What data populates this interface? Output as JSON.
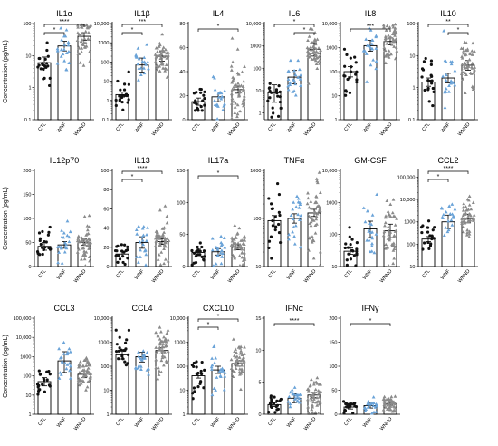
{
  "figure": {
    "ylabel": "Concentration (pg/mL)",
    "categories": [
      "CTL",
      "WNF",
      "WNND"
    ],
    "colors": {
      "CTL": "#111111",
      "WNF": "#6aa3d8",
      "WNND": "#8a8a8a",
      "axis": "#000000"
    }
  },
  "chart_data": [
    {
      "type": "scatter",
      "title": "IL1α",
      "scale": "log",
      "yticks": [
        "0.1",
        "1",
        "10",
        "100"
      ],
      "ytick_values": [
        0.1,
        1,
        10,
        100
      ],
      "ylim": [
        0.1,
        100
      ],
      "categories": [
        "CTL",
        "WNF",
        "WNND"
      ],
      "means": [
        6,
        20,
        40
      ],
      "sem_low": [
        4,
        14,
        30
      ],
      "sem_high": [
        9,
        28,
        52
      ],
      "n": [
        20,
        22,
        48
      ],
      "brackets": [
        {
          "from": "CTL",
          "to": "WNF",
          "label": "*"
        },
        {
          "from": "CTL",
          "to": "WNND",
          "label": "****"
        }
      ]
    },
    {
      "type": "scatter",
      "title": "IL1β",
      "scale": "log",
      "yticks": [
        "0.1",
        "1",
        "10",
        "100",
        "1000",
        "10,000"
      ],
      "ytick_values": [
        0.1,
        1,
        10,
        100,
        1000,
        10000
      ],
      "ylim": [
        0.1,
        10000
      ],
      "categories": [
        "CTL",
        "WNF",
        "WNND"
      ],
      "means": [
        2,
        70,
        200
      ],
      "sem_low": [
        1.5,
        30,
        110
      ],
      "sem_high": [
        2.7,
        160,
        380
      ],
      "n": [
        20,
        22,
        48
      ],
      "brackets": [
        {
          "from": "CTL",
          "to": "WNF",
          "label": "*"
        },
        {
          "from": "CTL",
          "to": "WNND",
          "label": "***"
        }
      ]
    },
    {
      "type": "scatter",
      "title": "IL4",
      "scale": "linear",
      "yticks": [
        "0",
        "20",
        "40",
        "60",
        "80"
      ],
      "ytick_values": [
        0,
        20,
        40,
        60,
        80
      ],
      "ylim": [
        0,
        80
      ],
      "categories": [
        "CTL",
        "WNF",
        "WNND"
      ],
      "means": [
        15,
        19,
        25
      ],
      "sem_low": [
        12,
        15,
        22
      ],
      "sem_high": [
        18,
        23,
        28
      ],
      "n": [
        20,
        22,
        48
      ],
      "brackets": [
        {
          "from": "CTL",
          "to": "WNND",
          "label": "*"
        }
      ]
    },
    {
      "type": "scatter",
      "title": "IL6",
      "scale": "log",
      "yticks": [
        "1",
        "10",
        "100",
        "1000",
        "10,000"
      ],
      "ytick_values": [
        1,
        10,
        100,
        1000,
        10000
      ],
      "ylim": [
        0.5,
        10000
      ],
      "categories": [
        "CTL",
        "WNF",
        "WNND"
      ],
      "means": [
        8,
        40,
        700
      ],
      "sem_low": [
        3,
        20,
        350
      ],
      "sem_high": [
        18,
        80,
        1400
      ],
      "n": [
        20,
        22,
        48
      ],
      "brackets": [
        {
          "from": "WNF",
          "to": "WNND",
          "label": "*"
        },
        {
          "from": "CTL",
          "to": "WNND",
          "label": "*"
        }
      ]
    },
    {
      "type": "scatter",
      "title": "IL8",
      "scale": "log",
      "yticks": [
        "1",
        "10",
        "100",
        "1000",
        "10,000"
      ],
      "ytick_values": [
        1,
        10,
        100,
        1000,
        10000
      ],
      "ylim": [
        1,
        10000
      ],
      "categories": [
        "CTL",
        "WNF",
        "WNND"
      ],
      "means": [
        100,
        1200,
        1800
      ],
      "sem_low": [
        60,
        700,
        1300
      ],
      "sem_high": [
        160,
        2000,
        2500
      ],
      "n": [
        20,
        22,
        48
      ],
      "brackets": [
        {
          "from": "CTL",
          "to": "WNND",
          "label": "***"
        }
      ]
    },
    {
      "type": "scatter",
      "title": "IL10",
      "scale": "log",
      "yticks": [
        "0.1",
        "1",
        "10",
        "100"
      ],
      "ytick_values": [
        0.1,
        1,
        10,
        100
      ],
      "ylim": [
        0.1,
        100
      ],
      "categories": [
        "CTL",
        "WNF",
        "WNND"
      ],
      "means": [
        1.5,
        2,
        5
      ],
      "sem_low": [
        1.1,
        1.4,
        3.5
      ],
      "sem_high": [
        2,
        2.8,
        7
      ],
      "n": [
        20,
        22,
        48
      ],
      "brackets": [
        {
          "from": "WNF",
          "to": "WNND",
          "label": "*"
        },
        {
          "from": "CTL",
          "to": "WNND",
          "label": "**"
        }
      ]
    },
    {
      "type": "scatter",
      "title": "IL12p70",
      "scale": "linear",
      "yticks": [
        "0",
        "50",
        "100",
        "150",
        "200"
      ],
      "ytick_values": [
        0,
        50,
        100,
        150,
        200
      ],
      "ylim": [
        0,
        200
      ],
      "categories": [
        "CTL",
        "WNF",
        "WNND"
      ],
      "means": [
        42,
        45,
        50
      ],
      "sem_low": [
        34,
        38,
        44
      ],
      "sem_high": [
        50,
        52,
        57
      ],
      "n": [
        20,
        22,
        48
      ],
      "brackets": []
    },
    {
      "type": "scatter",
      "title": "IL13",
      "scale": "linear",
      "yticks": [
        "0",
        "20",
        "40",
        "60",
        "80",
        "100"
      ],
      "ytick_values": [
        0,
        20,
        40,
        60,
        80,
        100
      ],
      "ylim": [
        0,
        100
      ],
      "categories": [
        "CTL",
        "WNF",
        "WNND"
      ],
      "means": [
        13,
        25,
        26
      ],
      "sem_low": [
        10,
        19,
        23
      ],
      "sem_high": [
        16,
        31,
        29
      ],
      "n": [
        20,
        22,
        48
      ],
      "brackets": [
        {
          "from": "CTL",
          "to": "WNF",
          "label": "*"
        },
        {
          "from": "CTL",
          "to": "WNND",
          "label": "****"
        }
      ]
    },
    {
      "type": "scatter",
      "title": "IL17a",
      "scale": "linear",
      "yticks": [
        "0",
        "50",
        "100",
        "150"
      ],
      "ytick_values": [
        0,
        50,
        100,
        150
      ],
      "ylim": [
        0,
        150
      ],
      "categories": [
        "CTL",
        "WNF",
        "WNND"
      ],
      "means": [
        22,
        23,
        30
      ],
      "sem_low": [
        17,
        18,
        26
      ],
      "sem_high": [
        27,
        28,
        34
      ],
      "n": [
        20,
        22,
        48
      ],
      "brackets": [
        {
          "from": "CTL",
          "to": "WNND",
          "label": "*"
        }
      ]
    },
    {
      "type": "scatter",
      "title": "TNFα",
      "scale": "log",
      "yticks": [
        "10",
        "100",
        "1000"
      ],
      "ytick_values": [
        10,
        100,
        1000
      ],
      "ylim": [
        10,
        1000
      ],
      "categories": [
        "CTL",
        "WNF",
        "WNND"
      ],
      "means": [
        90,
        100,
        130
      ],
      "sem_low": [
        70,
        80,
        110
      ],
      "sem_high": [
        115,
        125,
        155
      ],
      "n": [
        20,
        22,
        48
      ],
      "brackets": []
    },
    {
      "type": "scatter",
      "title": "GM-CSF",
      "scale": "log",
      "yticks": [
        "10",
        "100",
        "1000",
        "10,000"
      ],
      "ytick_values": [
        10,
        100,
        1000,
        10000
      ],
      "ylim": [
        10,
        10000
      ],
      "categories": [
        "CTL",
        "WNF",
        "WNND"
      ],
      "means": [
        30,
        150,
        130
      ],
      "sem_low": [
        24,
        80,
        80
      ],
      "sem_high": [
        38,
        260,
        210
      ],
      "n": [
        20,
        22,
        48
      ],
      "brackets": []
    },
    {
      "type": "scatter",
      "title": "CCL2",
      "scale": "log",
      "yticks": [
        "10",
        "100",
        "1000",
        "10,000",
        "100,000"
      ],
      "ytick_values": [
        10,
        100,
        1000,
        10000,
        100000
      ],
      "ylim": [
        10,
        200000
      ],
      "categories": [
        "CTL",
        "WNF",
        "WNND"
      ],
      "means": [
        170,
        1000,
        1400
      ],
      "sem_low": [
        130,
        500,
        900
      ],
      "sem_high": [
        220,
        2000,
        2200
      ],
      "n": [
        20,
        22,
        48
      ],
      "brackets": [
        {
          "from": "CTL",
          "to": "WNF",
          "label": "*"
        },
        {
          "from": "CTL",
          "to": "WNND",
          "label": "****"
        }
      ]
    },
    {
      "type": "scatter",
      "title": "CCL3",
      "scale": "log",
      "yticks": [
        "1",
        "10",
        "100",
        "1000",
        "10,000",
        "100,000"
      ],
      "ytick_values": [
        1,
        10,
        100,
        1000,
        10000,
        100000
      ],
      "ylim": [
        1,
        100000
      ],
      "categories": [
        "CTL",
        "WNF",
        "WNND"
      ],
      "means": [
        50,
        600,
        120
      ],
      "sem_low": [
        30,
        150,
        80
      ],
      "sem_high": [
        80,
        1800,
        180
      ],
      "n": [
        20,
        22,
        48
      ],
      "brackets": []
    },
    {
      "type": "scatter",
      "title": "CCL4",
      "scale": "log",
      "yticks": [
        "1",
        "10",
        "100",
        "1000",
        "10,000"
      ],
      "ytick_values": [
        1,
        10,
        100,
        1000,
        10000
      ],
      "ylim": [
        1,
        10000
      ],
      "categories": [
        "CTL",
        "WNF",
        "WNND"
      ],
      "means": [
        300,
        250,
        450
      ],
      "sem_low": [
        200,
        150,
        330
      ],
      "sem_high": [
        430,
        380,
        600
      ],
      "n": [
        20,
        22,
        48
      ],
      "brackets": []
    },
    {
      "type": "scatter",
      "title": "CXCL10",
      "scale": "log",
      "yticks": [
        "1",
        "10",
        "100",
        "1000",
        "10,000"
      ],
      "ytick_values": [
        1,
        10,
        100,
        1000,
        10000
      ],
      "ylim": [
        1,
        10000
      ],
      "categories": [
        "CTL",
        "WNF",
        "WNND"
      ],
      "means": [
        40,
        70,
        130
      ],
      "sem_low": [
        32,
        50,
        100
      ],
      "sem_high": [
        50,
        100,
        170
      ],
      "n": [
        20,
        22,
        48
      ],
      "brackets": [
        {
          "from": "CTL",
          "to": "WNF",
          "label": "*"
        },
        {
          "from": "CTL",
          "to": "WNND",
          "label": "*"
        }
      ]
    },
    {
      "type": "scatter",
      "title": "IFNα",
      "scale": "linear",
      "yticks": [
        "0",
        "5",
        "10",
        "15"
      ],
      "ytick_values": [
        0,
        5,
        10,
        15
      ],
      "ylim": [
        0,
        15
      ],
      "categories": [
        "CTL",
        "WNF",
        "WNND"
      ],
      "means": [
        1.5,
        2.5,
        3
      ],
      "sem_low": [
        1.2,
        1.8,
        2.6
      ],
      "sem_high": [
        1.8,
        3.2,
        3.4
      ],
      "n": [
        20,
        22,
        48
      ],
      "brackets": [
        {
          "from": "CTL",
          "to": "WNND",
          "label": "****"
        }
      ]
    },
    {
      "type": "scatter",
      "title": "IFNγ",
      "scale": "linear",
      "yticks": [
        "0",
        "50",
        "100",
        "150",
        "200"
      ],
      "ytick_values": [
        0,
        50,
        100,
        150,
        200
      ],
      "ylim": [
        0,
        200
      ],
      "categories": [
        "CTL",
        "WNF",
        "WNND"
      ],
      "means": [
        15,
        18,
        22
      ],
      "sem_low": [
        11,
        13,
        19
      ],
      "sem_high": [
        19,
        23,
        25
      ],
      "n": [
        20,
        22,
        48
      ],
      "brackets": [
        {
          "from": "CTL",
          "to": "WNND",
          "label": "*"
        }
      ]
    }
  ]
}
